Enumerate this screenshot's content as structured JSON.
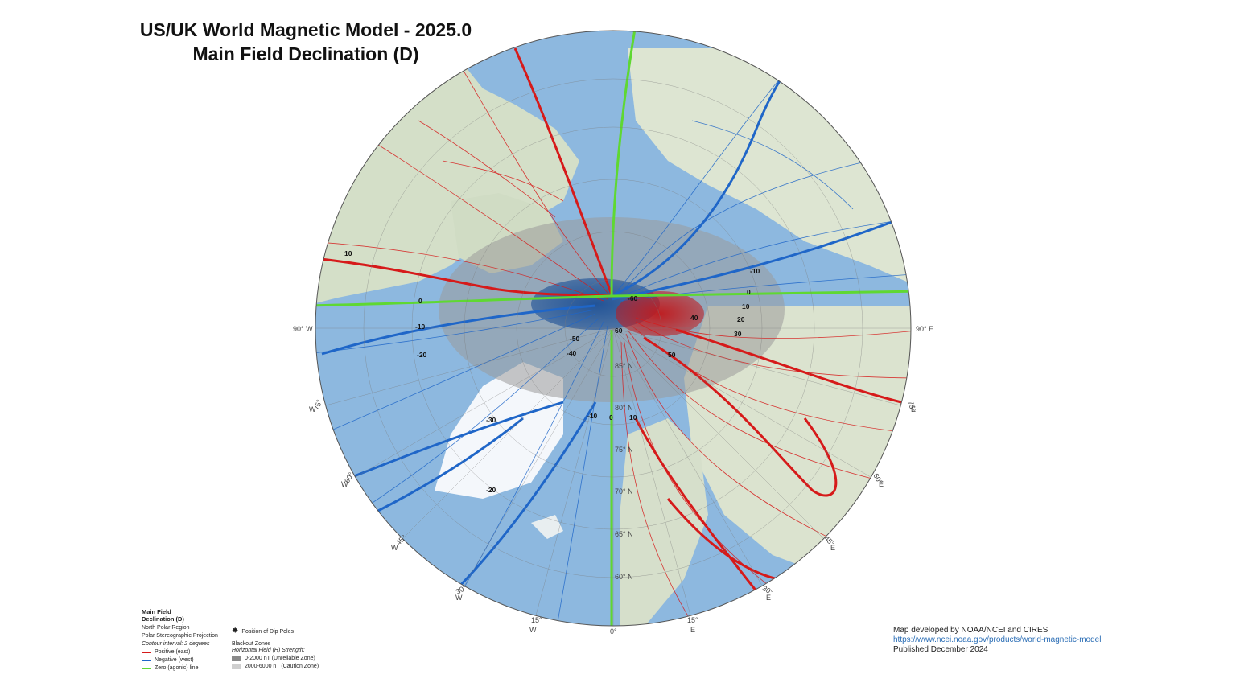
{
  "title": {
    "line1": "US/UK World Magnetic Model - 2025.0",
    "line2": "Main Field Declination (D)"
  },
  "map": {
    "projection_label": "Polar Stereographic Projection",
    "lon_labels": [
      "90° W",
      "90° E",
      "75°",
      "W",
      "75°",
      "E",
      "60°",
      "W",
      "60°",
      "E",
      "45°",
      "W",
      "45°",
      "E",
      "30°",
      "W",
      "30°",
      "E",
      "15°",
      "W",
      "15°",
      "E",
      "0°"
    ],
    "lat_labels": [
      "85° N",
      "80° N",
      "75° N",
      "70° N",
      "65° N",
      "60° N"
    ],
    "contour_labels": [
      "10",
      "0",
      "-10",
      "-20",
      "-30",
      "-20",
      "-10",
      "-50",
      "-40",
      "-60",
      "60",
      "-10",
      "0",
      "10",
      "20",
      "30",
      "40",
      "50",
      "0",
      "10"
    ],
    "colors": {
      "positive": "#d61a1a",
      "negative": "#1f66c8",
      "zero": "#5fd832",
      "ocean": "#8fb9e0",
      "land": "#d9e4cf"
    }
  },
  "legend": {
    "heading1": "Main Field",
    "heading2": "Declination (D)",
    "region": "North Polar Region",
    "projection": "Polar Stereographic Projection",
    "interval": "Contour interval: 2 degrees",
    "positive": "Positive (east)",
    "negative": "Negative (west)",
    "zero": "Zero (agonic) line",
    "dip_poles": "Position of Dip Poles",
    "blackout_title": "Blackout Zones",
    "blackout_sub": "Horizontal Field (H) Strength:",
    "zone1": "0-2000 nT (Unreliable Zone)",
    "zone2": "2000-6000 nT (Caution Zone)"
  },
  "credits": {
    "line1": "Map developed by NOAA/NCEI and CIRES",
    "link": "https://www.ncei.noaa.gov/products/world-magnetic-model",
    "line3": "Published December 2024"
  }
}
